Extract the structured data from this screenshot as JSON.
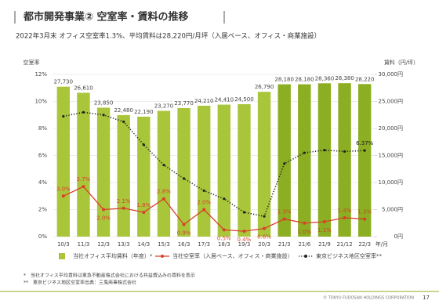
{
  "chart_data": {
    "type": "bar",
    "title": "都市開発事業② 空室率・賃料の推移",
    "subtitle": "2022年3月末 オフィス空室率1.3%、平均賃料は28,220円/月坪（入居ベース、オフィス・商業施設）",
    "y_label": "空室率",
    "y2_label": "賃料（円/坪）",
    "x_label": "年/月",
    "categories": [
      "10/3",
      "11/3",
      "12/3",
      "13/3",
      "14/3",
      "15/3",
      "16/3",
      "17/3",
      "18/3",
      "19/3",
      "20/3",
      "21/3",
      "21/6",
      "21/9",
      "21/12",
      "22/3"
    ],
    "ylim": [
      0,
      12
    ],
    "yticks": [
      {
        "value": 0,
        "label": "0%"
      },
      {
        "value": 2,
        "label": "2%"
      },
      {
        "value": 4,
        "label": "4%"
      },
      {
        "value": 6,
        "label": "6%"
      },
      {
        "value": 8,
        "label": "8%"
      },
      {
        "value": 10,
        "label": "10%"
      },
      {
        "value": 12,
        "label": "12%"
      }
    ],
    "y2lim": [
      0,
      30000
    ],
    "y2ticks": [
      {
        "value": 0,
        "label": "0円"
      },
      {
        "value": 5000,
        "label": "5,000円"
      },
      {
        "value": 10000,
        "label": "10,000円"
      },
      {
        "value": 15000,
        "label": "15,000円"
      },
      {
        "value": 20000,
        "label": "20,000円"
      },
      {
        "value": 25000,
        "label": "25,000円"
      },
      {
        "value": 30000,
        "label": "30,000円"
      }
    ],
    "grid": true,
    "series": [
      {
        "name": "当社オフィス平均賃料（年度）*",
        "type": "bar",
        "axis": "y2",
        "color": "#a9c63a",
        "colors": [
          "#a9c63a",
          "#a9c63a",
          "#a9c63a",
          "#a9c63a",
          "#a9c63a",
          "#a9c63a",
          "#a9c63a",
          "#a9c63a",
          "#a9c63a",
          "#a9c63a",
          "#a9c63a",
          "#8cae22",
          "#8cae22",
          "#8cae22",
          "#8cae22",
          "#8cae22"
        ],
        "values": [
          27730,
          26610,
          23850,
          22480,
          22190,
          23270,
          23770,
          24210,
          24410,
          24500,
          26790,
          28180,
          28180,
          28360,
          28380,
          28220
        ],
        "value_labels": [
          "27,730",
          "26,610",
          "23,850",
          "22,480",
          "22,190",
          "23,270",
          "23,770",
          "24,210",
          "24,410",
          "24,500",
          "26,790",
          "28,180",
          "28,180",
          "28,360",
          "28,380",
          "28,220"
        ]
      },
      {
        "name": "当社空室率（入居ベース、オフィス・商業施設）",
        "type": "line",
        "color": "#d8402a",
        "values": [
          3.0,
          3.7,
          2.0,
          2.1,
          1.8,
          2.8,
          0.9,
          2.0,
          0.5,
          0.4,
          0.6,
          1.3,
          1.0,
          1.1,
          1.4,
          1.3
        ],
        "value_labels": [
          "3.0%",
          "3.7%",
          "2.0%",
          "2.1%",
          "1.8%",
          "2.8%",
          "0.9%",
          "2.0%",
          "0.5%",
          "0.4%",
          "0.6%",
          "1.3%",
          "1.0%",
          "1.1%",
          "1.4%",
          "1.3%"
        ]
      },
      {
        "name": "東京ビジネス地区空室率**",
        "type": "dotted",
        "color": "#222222",
        "values": [
          8.9,
          9.2,
          9.0,
          8.5,
          6.8,
          5.3,
          4.3,
          3.4,
          2.8,
          1.8,
          1.5,
          5.4,
          6.2,
          6.4,
          6.3,
          6.37
        ],
        "value_labels": [
          null,
          null,
          null,
          null,
          null,
          null,
          null,
          null,
          null,
          null,
          null,
          null,
          null,
          null,
          null,
          "6.37%"
        ]
      }
    ],
    "notes": [
      "*　当社オフィス平均賃料は東急不動産株式会社における共益費込みの賃料を表示",
      "**　東京ビジネス地区空室率出典：三鬼商事株式会社"
    ],
    "footer": "© TOKYU FUDOSAN HOLDINGS CORPORATION",
    "page": "17"
  }
}
